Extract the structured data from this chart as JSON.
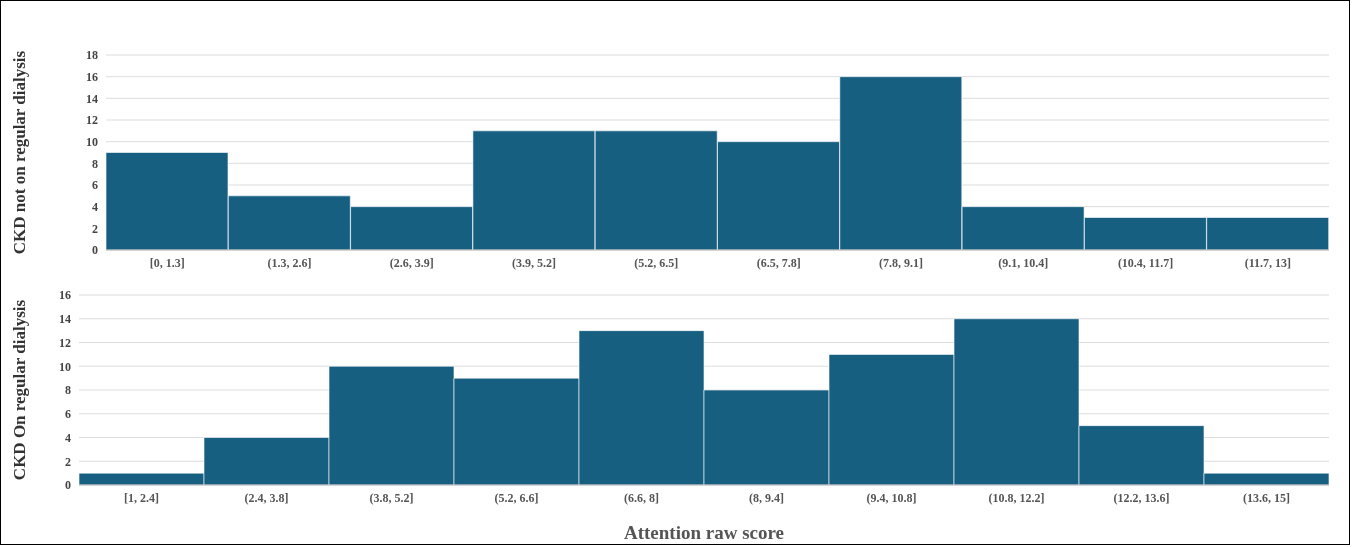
{
  "chart_data": [
    {
      "type": "bar",
      "ylabel": "CKD not on regular dialysis",
      "categories": [
        "[0, 1.3]",
        "(1.3, 2.6]",
        "(2.6, 3.9]",
        "(3.9, 5.2]",
        "(5.2, 6.5]",
        "(6.5, 7.8]",
        "(7.8, 9.1]",
        "(9.1, 10.4]",
        "(10.4, 11.7]",
        "(11.7, 13]"
      ],
      "values": [
        9,
        5,
        4,
        11,
        11,
        10,
        16,
        4,
        3,
        3
      ],
      "color": "#175f80",
      "ylim": [
        0,
        18
      ],
      "yticks": [
        0,
        2,
        4,
        6,
        8,
        10,
        12,
        14,
        16,
        18
      ],
      "grid": "y"
    },
    {
      "type": "bar",
      "ylabel": "CKD On regular dialysis",
      "xlabel": "Attention raw score",
      "categories": [
        "[1, 2.4]",
        "(2.4, 3.8]",
        "(3.8, 5.2]",
        "(5.2, 6.6]",
        "(6.6, 8]",
        "(8, 9.4]",
        "(9.4, 10.8]",
        "(10.8, 12.2]",
        "(12.2, 13.6]",
        "(13.6, 15]"
      ],
      "values": [
        1,
        4,
        10,
        9,
        13,
        8,
        11,
        14,
        5,
        1
      ],
      "color": "#175f80",
      "ylim": [
        0,
        16
      ],
      "yticks": [
        0,
        2,
        4,
        6,
        8,
        10,
        12,
        14,
        16
      ],
      "grid": "y"
    }
  ]
}
